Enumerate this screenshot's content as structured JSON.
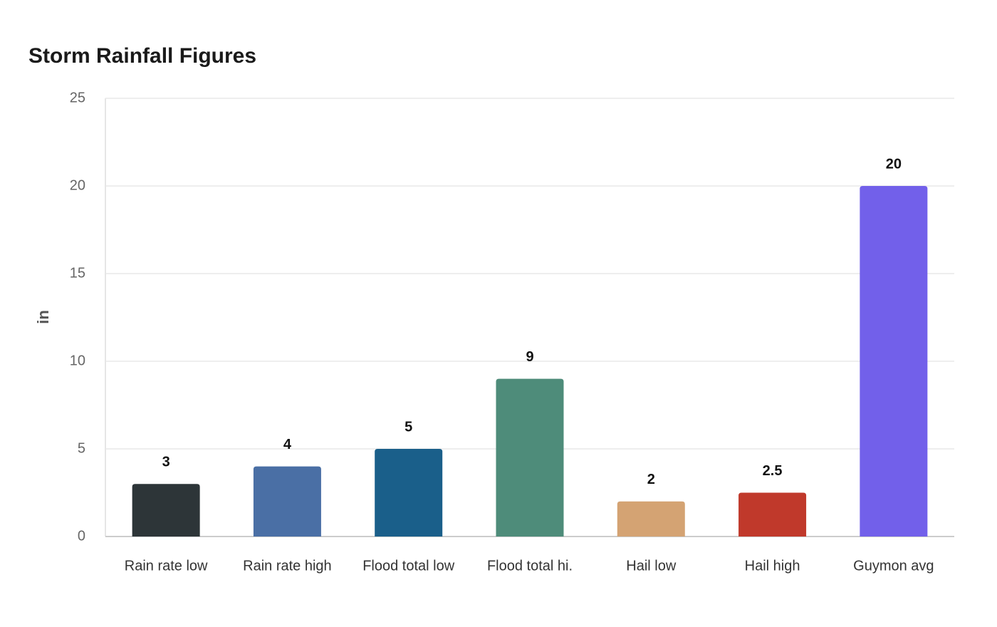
{
  "chart_data": {
    "type": "bar",
    "title": "Storm Rainfall Figures",
    "y_label": "in",
    "categories": [
      "Rain rate low",
      "Rain rate high",
      "Flood total low",
      "Flood total hi.",
      "Hail low",
      "Hail high",
      "Guymon avg"
    ],
    "values": [
      3,
      4,
      5,
      9,
      2,
      2.5,
      20
    ],
    "colors": [
      "#2d3538",
      "#4a6fa5",
      "#1a5f8a",
      "#4e8c7a",
      "#d4a373",
      "#c0392b",
      "#7260ea"
    ],
    "ylim": [
      0,
      25
    ],
    "yticks": [
      0,
      5,
      10,
      15,
      20,
      25
    ],
    "grid": true
  }
}
